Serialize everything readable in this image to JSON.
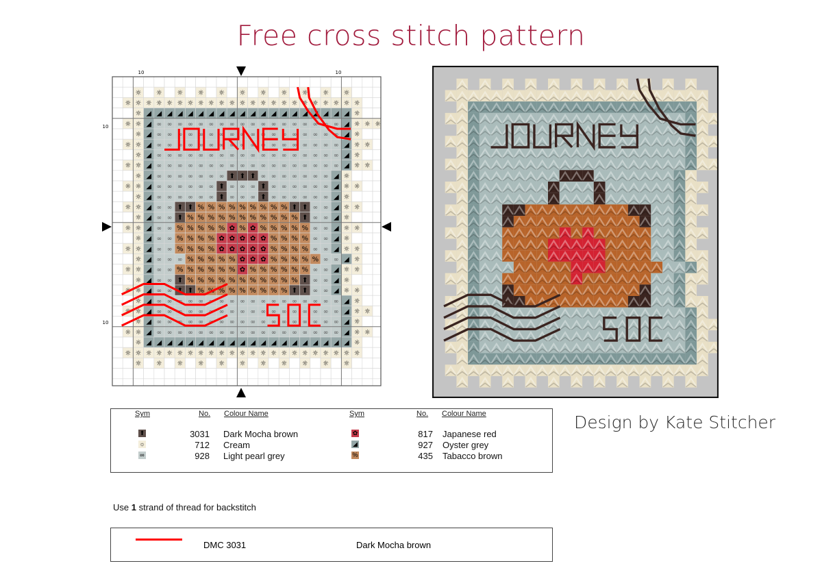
{
  "title": "Free cross stitch pattern",
  "designer": "Design by Kate Stitcher",
  "chart": {
    "axis_labels": {
      "top_left": "10",
      "top_right": "10",
      "left_top": "10",
      "left_bottom": "10"
    },
    "center_markers": [
      "arrow-down",
      "arrow-up",
      "arrow-right",
      "arrow-left"
    ],
    "pattern_rows": [
      "..........................",
      "..c.c.c.c.c.c.c.c.c.c.c...",
      ".ccccccccccccccccccccccc..",
      "..cooooooooooooooooooooc...",
      ".ccoggggggggggggggggggoccc..",
      "..coggggggggggggggggggoc...",
      ".ccoggggggggggggggggggocc..",
      "..coggggggggggggggggggoc...",
      ".ccoggggggggggggggggggocc..",
      "..cogggggggmmmgggggggoc...",
      ".ccoggggggmgggmggggggocc..",
      "..coggggggmgggmggggggoc...",
      ".ccoggmmtttttttttmmggocc..",
      "..coggmtttttttttttmggoc...",
      ".ccoggtttttrtrtttttggocc..",
      "..coggttttrrrrrttttggoc...",
      ".ccoggttttrrrrrttttggocc..",
      "..cogggtttttrrrtttttggoc...",
      ".ccoggttttttrttttttggocc..",
      "..coggmtttttttttttmggoc...",
      ".ccoggmmtttttttttmmggocc..",
      "..coggggggggggggggggggoc...",
      ".ccoggggggggggggggggggocc..",
      "..coggggggggggggggggggoc...",
      ".ccoggggggggggggggggggocc..",
      "..cooooooooooooooooooooc...",
      ".ccccccccccccccccccccccc..",
      "..c.c.c.c.c.c.c.c.c.c.c...",
      "..........................",
      ".........................."
    ],
    "backstitch_words": [
      "JOURNEY",
      "SOC"
    ]
  },
  "threads": {
    "c": {
      "symbol": "☼",
      "chart_color": "#f4eedb",
      "stitch_color": "#e9e0c6"
    },
    "o": {
      "symbol": "◢",
      "chart_color": "#95a7a7",
      "stitch_color": "#7e9898"
    },
    "g": {
      "symbol": "∞",
      "chart_color": "#c3cdcc",
      "stitch_color": "#aabcbb"
    },
    "m": {
      "symbol": "⬆",
      "chart_color": "#5f504b",
      "stitch_color": "#3b2520"
    },
    "t": {
      "symbol": "%",
      "chart_color": "#c28a5e",
      "stitch_color": "#b8642a"
    },
    "r": {
      "symbol": "✿",
      "chart_color": "#c63c4c",
      "stitch_color": "#d42232"
    }
  },
  "backstitch_color_chart": "#ff0000",
  "backstitch_color_stitched": "#3a2420",
  "legend": {
    "headers": {
      "sym": "Sym",
      "no": "No.",
      "name": "Colour Name"
    },
    "left": [
      {
        "key": "m",
        "no": "3031",
        "name": "Dark Mocha brown"
      },
      {
        "key": "c",
        "no": "712",
        "name": "Cream"
      },
      {
        "key": "g",
        "no": "928",
        "name": "Light pearl grey"
      }
    ],
    "right": [
      {
        "key": "r",
        "no": "817",
        "name": "Japanese red"
      },
      {
        "key": "o",
        "no": "927",
        "name": "Oyster grey"
      },
      {
        "key": "t",
        "no": "435",
        "name": "Tabacco brown"
      }
    ]
  },
  "backstitch_note": {
    "pre": "Use ",
    "strands": "1",
    "post": " strand of thread for backstitch"
  },
  "backstitch_legend": {
    "code": "DMC 3031",
    "name": "Dark Mocha brown",
    "line_color": "#ff0000"
  }
}
